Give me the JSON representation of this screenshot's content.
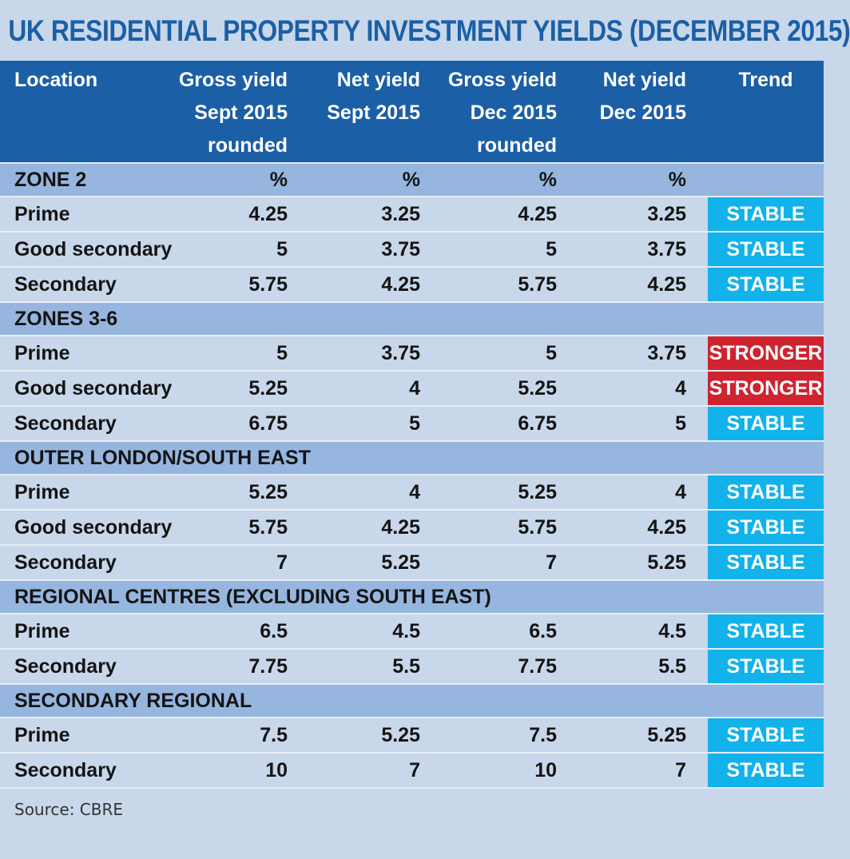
{
  "title": "UK RESIDENTIAL PROPERTY INVESTMENT YIELDS (DECEMBER 2015)",
  "columns": [
    [
      "Location"
    ],
    [
      "Gross yield",
      "Sept 2015",
      "rounded"
    ],
    [
      "Net yield",
      "Sept 2015"
    ],
    [
      "Gross yield",
      "Dec 2015",
      "rounded"
    ],
    [
      "Net yield",
      "Dec 2015"
    ],
    [
      "Trend"
    ]
  ],
  "sections": [
    {
      "name": "ZONE 2",
      "units": [
        "%",
        "%",
        "%",
        "%"
      ],
      "rows": [
        {
          "location": "Prime",
          "values": [
            "4.25",
            "3.25",
            "4.25",
            "3.25"
          ],
          "trend": "STABLE"
        },
        {
          "location": "Good secondary",
          "values": [
            "5",
            "3.75",
            "5",
            "3.75"
          ],
          "trend": "STABLE"
        },
        {
          "location": "Secondary",
          "values": [
            "5.75",
            "4.25",
            "5.75",
            "4.25"
          ],
          "trend": "STABLE"
        }
      ]
    },
    {
      "name": "ZONES 3-6",
      "units": [
        "",
        "",
        "",
        ""
      ],
      "rows": [
        {
          "location": "Prime",
          "values": [
            "5",
            "3.75",
            "5",
            "3.75"
          ],
          "trend": "STRONGER"
        },
        {
          "location": "Good secondary",
          "values": [
            "5.25",
            "4",
            "5.25",
            "4"
          ],
          "trend": "STRONGER"
        },
        {
          "location": "Secondary",
          "values": [
            "6.75",
            "5",
            "6.75",
            "5"
          ],
          "trend": "STABLE"
        }
      ]
    },
    {
      "name": "OUTER LONDON/SOUTH EAST",
      "units": [
        "",
        "",
        "",
        ""
      ],
      "rows": [
        {
          "location": "Prime",
          "values": [
            "5.25",
            "4",
            "5.25",
            "4"
          ],
          "trend": "STABLE"
        },
        {
          "location": "Good secondary",
          "values": [
            "5.75",
            "4.25",
            "5.75",
            "4.25"
          ],
          "trend": "STABLE"
        },
        {
          "location": "Secondary",
          "values": [
            "7",
            "5.25",
            "7",
            "5.25"
          ],
          "trend": "STABLE"
        }
      ]
    },
    {
      "name": "REGIONAL CENTRES (EXCLUDING SOUTH EAST)",
      "units": [
        "",
        "",
        "",
        ""
      ],
      "rows": [
        {
          "location": "Prime",
          "values": [
            "6.5",
            "4.5",
            "6.5",
            "4.5"
          ],
          "trend": "STABLE"
        },
        {
          "location": "Secondary",
          "values": [
            "7.75",
            "5.5",
            "7.75",
            "5.5"
          ],
          "trend": "STABLE"
        }
      ]
    },
    {
      "name": "SECONDARY REGIONAL",
      "units": [
        "",
        "",
        "",
        ""
      ],
      "rows": [
        {
          "location": "Prime",
          "values": [
            "7.5",
            "5.25",
            "7.5",
            "5.25"
          ],
          "trend": "STABLE"
        },
        {
          "location": "Secondary",
          "values": [
            "10",
            "7",
            "10",
            "7"
          ],
          "trend": "STABLE"
        }
      ]
    }
  ],
  "colors": {
    "title": "#1b5fa6",
    "header_bg": "#1b5fa6",
    "section_bg": "#96b6df",
    "row_bg": "#c9d7ea",
    "stable": "#12b2ea",
    "stronger": "#d02330"
  },
  "source": "Source: CBRE"
}
